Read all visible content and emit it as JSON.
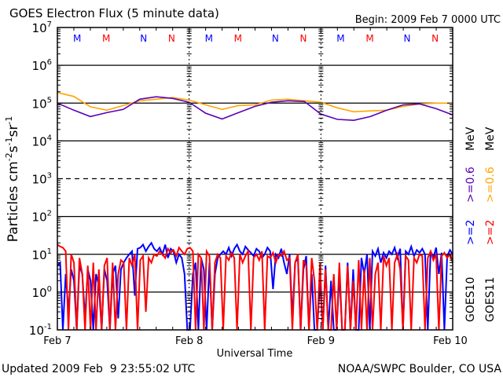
{
  "chart_data": {
    "type": "line",
    "title": "GOES Electron Flux (5 minute data)",
    "begin_label": "Begin: 2009 Feb 7 0000 UTC",
    "xlabel": "Universal Time",
    "ylabel": {
      "base": "Particles cm",
      "e1": "-2",
      "s": "s",
      "e2": "-1",
      "sr": "sr",
      "e3": "-1"
    },
    "x_unit": "hours since 2009 Feb 7 0000 UTC",
    "xlim": [
      0,
      72
    ],
    "x_ticks": [
      {
        "hour": 0,
        "label": "Feb 7"
      },
      {
        "hour": 24,
        "label": "Feb 8"
      },
      {
        "hour": 48,
        "label": "Feb 9"
      },
      {
        "hour": 72,
        "label": "Feb 10"
      }
    ],
    "yscale": "log",
    "ylim": [
      0.1,
      10000000
    ],
    "y_ticks": [
      {
        "value": 10000000,
        "base": "10",
        "exp": "7"
      },
      {
        "value": 1000000,
        "base": "10",
        "exp": "6"
      },
      {
        "value": 100000,
        "base": "10",
        "exp": "5"
      },
      {
        "value": 10000,
        "base": "10",
        "exp": "4"
      },
      {
        "value": 1000,
        "base": "10",
        "exp": "3"
      },
      {
        "value": 100,
        "base": "10",
        "exp": "2"
      },
      {
        "value": 10,
        "base": "10",
        "exp": "1"
      },
      {
        "value": 1,
        "base": "10",
        "exp": "0"
      },
      {
        "value": 0.1,
        "base": "10",
        "exp": "-1"
      }
    ],
    "threshold_lines": [
      {
        "value": 1000000,
        "style": "solid"
      },
      {
        "value": 100000,
        "style": "solid"
      },
      {
        "value": 10000,
        "style": "solid"
      },
      {
        "value": 1000,
        "style": "dashed"
      },
      {
        "value": 100,
        "style": "solid"
      },
      {
        "value": 10,
        "style": "solid"
      },
      {
        "value": 1,
        "style": "solid"
      }
    ],
    "markers": [
      {
        "label": "M",
        "hour": 3.6,
        "color": "#0000ff"
      },
      {
        "label": "M",
        "hour": 8.9,
        "color": "#ff0000"
      },
      {
        "label": "N",
        "hour": 15.7,
        "color": "#0000ff"
      },
      {
        "label": "N",
        "hour": 20.8,
        "color": "#ff0000"
      },
      {
        "label": "M",
        "hour": 27.6,
        "color": "#0000ff"
      },
      {
        "label": "M",
        "hour": 32.9,
        "color": "#ff0000"
      },
      {
        "label": "N",
        "hour": 39.7,
        "color": "#0000ff"
      },
      {
        "label": "N",
        "hour": 44.8,
        "color": "#ff0000"
      },
      {
        "label": "M",
        "hour": 51.6,
        "color": "#0000ff"
      },
      {
        "label": "M",
        "hour": 56.9,
        "color": "#ff0000"
      },
      {
        "label": "N",
        "hour": 63.7,
        "color": "#0000ff"
      },
      {
        "label": "N",
        "hour": 68.8,
        "color": "#ff0000"
      }
    ],
    "series": [
      {
        "name": ">=0.6 MeV GOES11",
        "satellite": "GOES11",
        "energy": ">=0.6",
        "color": "#ffa500",
        "hour_step": 3,
        "values": [
          190000,
          150000,
          80000,
          65000,
          86000,
          115000,
          127000,
          140000,
          120000,
          90000,
          68000,
          86000,
          90000,
          120000,
          127000,
          115000,
          105000,
          75000,
          59000,
          62000,
          65000,
          82000,
          95000,
          100000,
          100000
        ]
      },
      {
        "name": ">=0.6 MeV GOES10",
        "satellite": "GOES10",
        "energy": ">=0.6",
        "color": "#5a00b4",
        "hour_step": 3,
        "values": [
          100000,
          65000,
          44000,
          56000,
          68000,
          127000,
          147000,
          133000,
          105000,
          54000,
          38000,
          56000,
          82000,
          105000,
          115000,
          110000,
          51000,
          37000,
          35000,
          44000,
          65000,
          90000,
          95000,
          71000,
          49000
        ]
      },
      {
        "name": ">=2 MeV GOES10",
        "satellite": "GOES10",
        "energy": ">=2",
        "color": "#0000ff",
        "values": [
          5,
          6,
          0.1,
          3,
          0.3,
          4,
          2,
          0.1,
          5,
          3,
          0.2,
          4,
          2,
          0.1,
          3,
          1.5,
          0.1,
          4,
          2,
          0.1,
          3,
          5,
          0.2,
          4,
          6,
          8,
          10,
          12,
          0.8,
          14,
          15,
          18,
          12,
          16,
          20,
          14,
          12,
          15,
          10,
          18,
          8,
          14,
          12,
          6,
          10,
          8,
          3,
          0.1,
          0.1,
          3,
          6,
          0.1,
          8,
          4,
          0.1,
          6,
          0.1,
          3,
          8,
          10,
          12,
          10,
          15,
          9,
          14,
          18,
          12,
          10,
          16,
          13,
          11,
          9,
          14,
          12,
          8,
          10,
          15,
          12,
          1.2,
          10,
          8,
          14,
          6,
          3,
          10,
          0.2,
          6,
          8,
          0.1,
          4,
          9,
          0.1,
          3,
          0.1,
          0.1,
          2,
          0.1,
          5,
          0.1,
          2,
          0.1,
          0.1,
          3,
          0.1,
          0.1,
          6,
          0.1,
          4,
          0.1,
          0.1,
          8,
          3,
          10,
          0.1,
          12,
          9,
          14,
          6,
          11,
          8,
          12,
          10,
          15,
          8,
          14,
          0.1,
          12,
          10,
          16,
          9,
          13,
          11,
          14,
          10,
          0.1,
          12,
          8,
          15,
          3,
          11,
          0.1,
          9,
          13,
          10
        ]
      },
      {
        "name": ">=2 MeV GOES11",
        "satellite": "GOES11",
        "energy": ">=2",
        "color": "#ff0000",
        "values": [
          18,
          16,
          15,
          12,
          0.1,
          10,
          6,
          0.1,
          8,
          3,
          0.1,
          5,
          0.1,
          6,
          0.1,
          4,
          0.1,
          5,
          8,
          0.1,
          6,
          0.1,
          3,
          7,
          6,
          0.1,
          8,
          5,
          10,
          0.1,
          7,
          9,
          0.3,
          8,
          6,
          10,
          9,
          12,
          10,
          8,
          14,
          11,
          13,
          9,
          15,
          12,
          10,
          14,
          15,
          12,
          0.1,
          10,
          8,
          0.1,
          12,
          9,
          0.1,
          6,
          10,
          8,
          0.1,
          9,
          7,
          11,
          8,
          0.1,
          10,
          6,
          9,
          12,
          0.1,
          8,
          10,
          7,
          12,
          0.1,
          9,
          8,
          11,
          6,
          10,
          9,
          12,
          7,
          8,
          0.1,
          6,
          10,
          0.1,
          7,
          5,
          0.1,
          8,
          2,
          0.1,
          6,
          0.1,
          4,
          0.1,
          0.1,
          3,
          0.1,
          6,
          0.1,
          0.1,
          5,
          0.1,
          2,
          0.1,
          7,
          0.1,
          4,
          0.1,
          8,
          0.1,
          3,
          6,
          0.1,
          9,
          5,
          8,
          0.1,
          6,
          10,
          4,
          0.1,
          9,
          7,
          0.1,
          8,
          6,
          10,
          9,
          0.1,
          8,
          12,
          7,
          10,
          0.1,
          9,
          11,
          8,
          10,
          6
        ]
      }
    ],
    "legend": {
      "placement": "right",
      "columns": [
        {
          "satellite": "GOES10",
          "low": ">=2",
          "low_color": "#0000ff",
          "high": ">=0.6",
          "high_color": "#5a00b4",
          "unit": "MeV"
        },
        {
          "satellite": "GOES11",
          "low": ">=2",
          "low_color": "#ff0000",
          "high": ">=0.6",
          "high_color": "#ffa500",
          "unit": "MeV"
        }
      ]
    }
  },
  "footer": {
    "updated": "Updated 2009 Feb  9 23:55:02 UTC",
    "source": "NOAA/SWPC Boulder, CO USA"
  }
}
